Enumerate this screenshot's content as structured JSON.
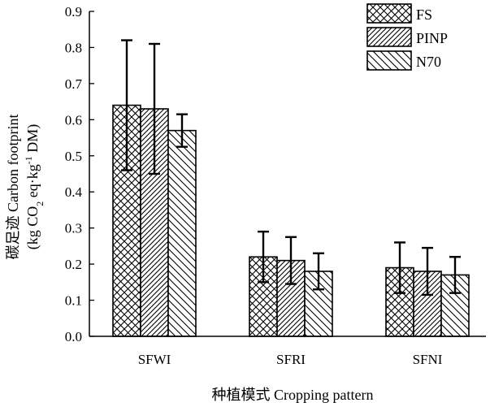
{
  "chart_data": {
    "type": "bar",
    "title": "",
    "categories": [
      "SFWI",
      "SFRI",
      "SFNI"
    ],
    "series": [
      {
        "name": "FS",
        "pattern": "crosshatch",
        "values": [
          0.64,
          0.22,
          0.19
        ],
        "errors": [
          0.18,
          0.07,
          0.07
        ]
      },
      {
        "name": "PINP",
        "pattern": "diagonal-dense",
        "values": [
          0.63,
          0.21,
          0.18
        ],
        "errors": [
          0.18,
          0.065,
          0.065
        ]
      },
      {
        "name": "N70",
        "pattern": "diagonal-wide",
        "values": [
          0.57,
          0.18,
          0.17
        ],
        "errors": [
          0.045,
          0.05,
          0.05
        ]
      }
    ],
    "xlabel": "种植模式 Cropping pattern",
    "ylabel_line1": "碳足迹 Carbon footprint",
    "ylabel_line2_parts": {
      "open": "(kg CO",
      "sub": "2",
      "mid": " eq·kg",
      "sup": "-1",
      "close": " DM)"
    },
    "ylim": [
      0,
      0.9
    ],
    "yticks": [
      "0.0",
      "0.1",
      "0.2",
      "0.3",
      "0.4",
      "0.5",
      "0.6",
      "0.7",
      "0.8",
      "0.9"
    ],
    "legend_position": "top-right",
    "grid": false,
    "colors": {
      "bar_fill": "#ffffff",
      "stroke": "#000000"
    }
  }
}
